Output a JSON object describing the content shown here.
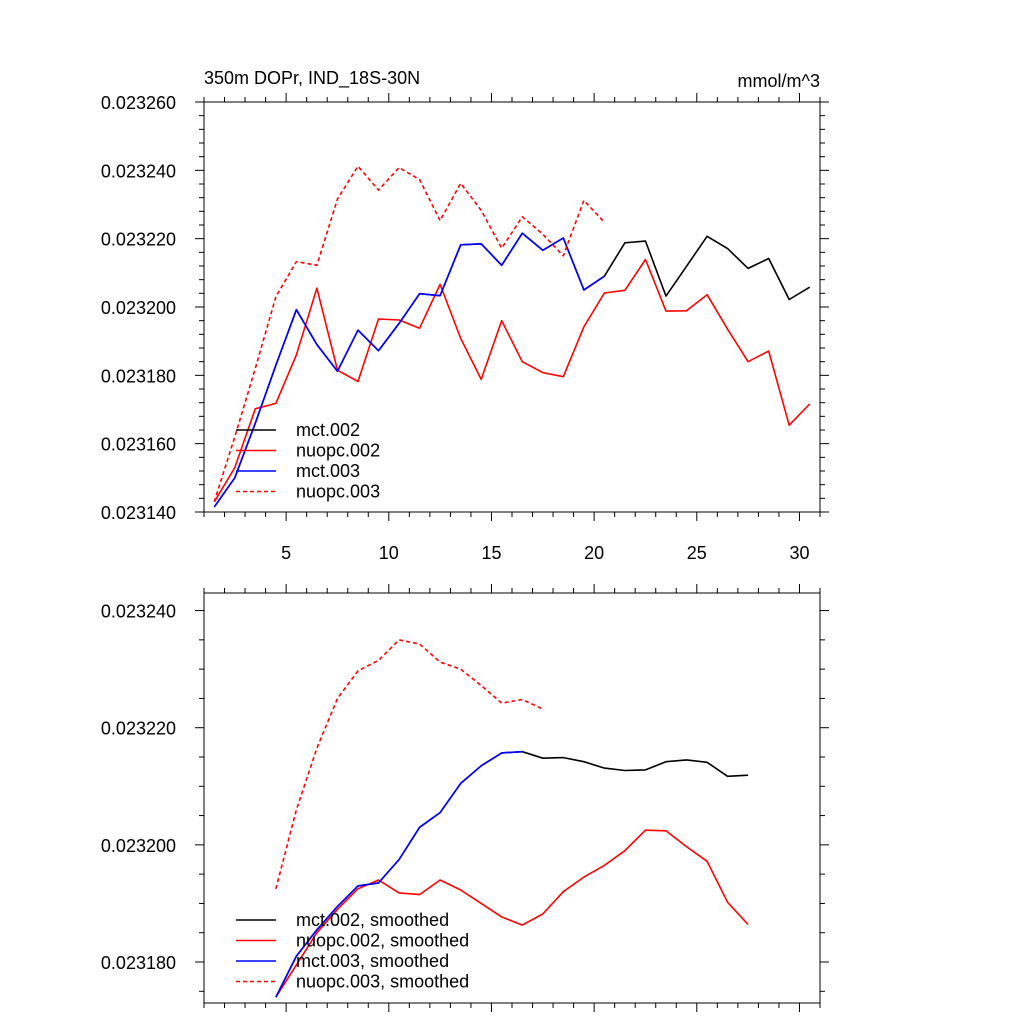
{
  "chart_data": [
    {
      "type": "line",
      "title": "350m DOPr, IND_18S-30N",
      "units_label": "mmol/m^3",
      "xlabel": "",
      "ylabel": "",
      "xlim": [
        1,
        31
      ],
      "ylim": [
        0.02314,
        0.02326
      ],
      "x_ticks": [
        5,
        10,
        15,
        20,
        25,
        30
      ],
      "x_tick_labels": [
        "5",
        "10",
        "15",
        "20",
        "25",
        "30"
      ],
      "y_ticks": [
        0.02314,
        0.02316,
        0.02318,
        0.0232,
        0.02322,
        0.02324,
        0.02326
      ],
      "y_tick_labels": [
        "0.023140",
        "0.023160",
        "0.023180",
        "0.023200",
        "0.023220",
        "0.023240",
        "0.023260"
      ],
      "legend_position": "bottom-left",
      "series": [
        {
          "name": "mct.002",
          "color": "#000000",
          "dash": "solid",
          "x": [
            1.5,
            2.5,
            3.5,
            4.5,
            5.5,
            6.5,
            7.5,
            8.5,
            9.5,
            10.5,
            11.5,
            12.5,
            13.5,
            14.5,
            15.5,
            16.5,
            17.5,
            18.5,
            19.5,
            20.5,
            21.5,
            22.5,
            23.5,
            24.5,
            25.5,
            26.5,
            27.5,
            28.5,
            29.5,
            30.5
          ],
          "values": [
            0.0231415,
            0.02315,
            0.023166,
            0.023183,
            0.0231992,
            0.023189,
            0.0231812,
            0.0231932,
            0.0231872,
            0.0231952,
            0.0232039,
            0.0232033,
            0.0232182,
            0.0232185,
            0.0232122,
            0.0232216,
            0.0232166,
            0.0232202,
            0.023205,
            0.023209,
            0.0232188,
            0.0232193,
            0.0232032,
            0.0232119,
            0.0232207,
            0.0232171,
            0.0232113,
            0.0232142,
            0.0232022,
            0.0232058
          ]
        },
        {
          "name": "nuopc.002",
          "color": "#ff0000",
          "dash": "solid",
          "x": [
            1.5,
            2.5,
            3.5,
            4.5,
            5.5,
            6.5,
            7.5,
            8.5,
            9.5,
            10.5,
            11.5,
            12.5,
            13.5,
            14.5,
            15.5,
            16.5,
            17.5,
            18.5,
            19.5,
            20.5,
            21.5,
            22.5,
            23.5,
            24.5,
            25.5,
            26.5,
            27.5,
            28.5,
            29.5,
            30.5
          ],
          "values": [
            0.023143,
            0.023153,
            0.0231702,
            0.0231718,
            0.023186,
            0.0232055,
            0.0231815,
            0.0231782,
            0.0231965,
            0.0231962,
            0.0231938,
            0.0232066,
            0.0231908,
            0.0231788,
            0.023196,
            0.023184,
            0.0231808,
            0.0231796,
            0.0231942,
            0.0232041,
            0.0232049,
            0.0232139,
            0.0231988,
            0.0231989,
            0.0232036,
            0.0231935,
            0.023184,
            0.0231871,
            0.0231654,
            0.0231716
          ]
        },
        {
          "name": "mct.003",
          "color": "#0000ff",
          "dash": "solid",
          "x": [
            1.5,
            2.5,
            3.5,
            4.5,
            5.5,
            6.5,
            7.5,
            8.5,
            9.5,
            10.5,
            11.5,
            12.5,
            13.5,
            14.5,
            15.5,
            16.5,
            17.5,
            18.5,
            19.5,
            20.5
          ],
          "values": [
            0.0231415,
            0.02315,
            0.023166,
            0.023183,
            0.0231992,
            0.023189,
            0.0231812,
            0.0231932,
            0.0231872,
            0.0231952,
            0.0232039,
            0.0232033,
            0.0232182,
            0.0232185,
            0.0232122,
            0.0232216,
            0.0232166,
            0.0232202,
            0.023205,
            0.023209
          ]
        },
        {
          "name": "nuopc.003",
          "color": "#ff0000",
          "dash": "dashed",
          "x": [
            1.5,
            2.5,
            3.5,
            4.5,
            5.5,
            6.5,
            7.5,
            8.5,
            9.5,
            10.5,
            11.5,
            12.5,
            13.5,
            14.5,
            15.5,
            16.5,
            17.5,
            18.5,
            19.5,
            20.5
          ],
          "values": [
            0.023143,
            0.023162,
            0.023182,
            0.023203,
            0.0232133,
            0.0232122,
            0.0232316,
            0.0232412,
            0.0232342,
            0.0232408,
            0.0232373,
            0.0232253,
            0.0232362,
            0.0232283,
            0.0232172,
            0.0232264,
            0.0232213,
            0.023215,
            0.0232312,
            0.0232248
          ]
        }
      ]
    },
    {
      "type": "line",
      "title": "",
      "xlabel": "",
      "ylabel": "",
      "xlim": [
        1,
        31
      ],
      "ylim": [
        0.023173,
        0.023243
      ],
      "x_ticks": [
        5,
        10,
        15,
        20,
        25,
        30
      ],
      "y_ticks": [
        0.02318,
        0.0232,
        0.02322,
        0.02324
      ],
      "y_tick_labels": [
        "0.023180",
        "0.023200",
        "0.023220",
        "0.023240"
      ],
      "legend_position": "bottom-left",
      "series": [
        {
          "name": "mct.002, smoothed",
          "color": "#000000",
          "dash": "solid",
          "x": [
            4.5,
            5.5,
            6.5,
            7.5,
            8.5,
            9.5,
            10.5,
            11.5,
            12.5,
            13.5,
            14.5,
            15.5,
            16.5,
            17.5,
            18.5,
            19.5,
            20.5,
            21.5,
            22.5,
            23.5,
            24.5,
            25.5,
            26.5,
            27.5
          ],
          "values": [
            0.023174,
            0.023181,
            0.0231855,
            0.0231895,
            0.023193,
            0.0231935,
            0.0231975,
            0.023203,
            0.0232055,
            0.0232105,
            0.0232135,
            0.0232157,
            0.0232159,
            0.0232148,
            0.0232149,
            0.0232142,
            0.0232131,
            0.0232127,
            0.0232128,
            0.0232142,
            0.0232145,
            0.0232141,
            0.0232117,
            0.0232119
          ]
        },
        {
          "name": "nuopc.002, smoothed",
          "color": "#ff0000",
          "dash": "solid",
          "x": [
            4.5,
            5.5,
            6.5,
            7.5,
            8.5,
            9.5,
            10.5,
            11.5,
            12.5,
            13.5,
            14.5,
            15.5,
            16.5,
            17.5,
            18.5,
            19.5,
            20.5,
            21.5,
            22.5,
            23.5,
            24.5,
            25.5,
            26.5,
            27.5
          ],
          "values": [
            0.023174,
            0.0231795,
            0.023185,
            0.023189,
            0.0231925,
            0.023194,
            0.0231918,
            0.0231915,
            0.023194,
            0.0231923,
            0.02319,
            0.0231877,
            0.0231863,
            0.0231882,
            0.023192,
            0.0231945,
            0.0231965,
            0.023199,
            0.0232025,
            0.0232024,
            0.0231997,
            0.0231972,
            0.0231902,
            0.0231864
          ]
        },
        {
          "name": "mct.003, smoothed",
          "color": "#0000ff",
          "dash": "solid",
          "x": [
            4.5,
            5.5,
            6.5,
            7.5,
            8.5,
            9.5,
            10.5,
            11.5,
            12.5,
            13.5,
            14.5,
            15.5,
            16.5
          ],
          "values": [
            0.023174,
            0.023181,
            0.0231855,
            0.0231895,
            0.023193,
            0.0231935,
            0.0231975,
            0.023203,
            0.0232055,
            0.0232105,
            0.0232135,
            0.0232157,
            0.0232159
          ]
        },
        {
          "name": "nuopc.003, smoothed",
          "color": "#ff0000",
          "dash": "dashed",
          "x": [
            4.5,
            5.5,
            6.5,
            7.5,
            8.5,
            9.5,
            10.5,
            11.5,
            12.5,
            13.5,
            14.5,
            15.5,
            16.5,
            17.5
          ],
          "values": [
            0.0231925,
            0.023206,
            0.0232165,
            0.023225,
            0.0232297,
            0.0232315,
            0.023235,
            0.0232343,
            0.0232312,
            0.02323,
            0.0232272,
            0.0232242,
            0.0232248,
            0.0232232
          ]
        }
      ]
    }
  ]
}
